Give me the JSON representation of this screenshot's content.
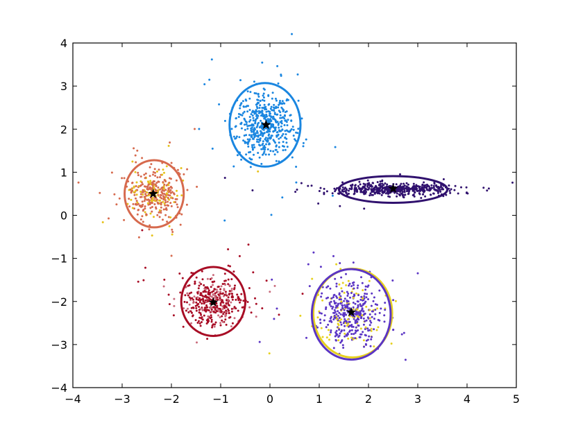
{
  "chart_data": {
    "type": "scatter",
    "title": "",
    "xlabel": "",
    "ylabel": "",
    "xlim": [
      -4,
      5
    ],
    "ylim": [
      -4,
      4
    ],
    "xticks": [
      -4,
      -3,
      -2,
      -1,
      0,
      1,
      2,
      3,
      4,
      5
    ],
    "yticks": [
      -4,
      -3,
      -2,
      -1,
      0,
      1,
      2,
      3,
      4
    ],
    "xtick_labels": [
      "−4",
      "−3",
      "−2",
      "−1",
      "0",
      "1",
      "2",
      "3",
      "4",
      "5"
    ],
    "ytick_labels": [
      "−4",
      "−3",
      "−2",
      "−1",
      "0",
      "1",
      "2",
      "3",
      "4"
    ],
    "grid": false,
    "legend": "none",
    "clusters": [
      {
        "id": "cluster-top",
        "color": "#1a86e0",
        "center": [
          -0.1,
          2.1
        ],
        "spread": [
          0.28,
          0.38
        ],
        "n_points": 520,
        "ellipse": {
          "cx": -0.1,
          "cy": 2.1,
          "rx": 0.72,
          "ry": 0.97
        },
        "marker": {
          "x": -0.08,
          "y": 2.1
        }
      },
      {
        "id": "cluster-left",
        "color": "#d66a4e",
        "secondary_color": "#e6c21c",
        "center": [
          -2.35,
          0.5
        ],
        "spread": [
          0.27,
          0.3
        ],
        "n_points": 380,
        "ellipse": {
          "cx": -2.35,
          "cy": 0.5,
          "rx": 0.6,
          "ry": 0.78
        },
        "marker": {
          "x": -2.37,
          "y": 0.5
        }
      },
      {
        "id": "cluster-right",
        "color": "#30116e",
        "center": [
          2.5,
          0.6
        ],
        "spread": [
          0.55,
          0.07
        ],
        "n_points": 480,
        "ellipse": {
          "cx": 2.5,
          "cy": 0.6,
          "rx": 1.1,
          "ry": 0.31
        },
        "marker": {
          "x": 2.5,
          "y": 0.62
        }
      },
      {
        "id": "cluster-bottom-left",
        "color": "#a80d25",
        "secondary_color": "#c96b7c",
        "center": [
          -1.15,
          -2.0
        ],
        "spread": [
          0.3,
          0.28
        ],
        "n_points": 420,
        "ellipse": {
          "cx": -1.15,
          "cy": -2.0,
          "rx": 0.65,
          "ry": 0.8
        },
        "marker": {
          "x": -1.15,
          "y": -2.02
        }
      },
      {
        "id": "cluster-bottom-right",
        "color": "#5b35c4",
        "secondary_color": "#e6d11f",
        "center": [
          1.65,
          -2.25
        ],
        "spread": [
          0.3,
          0.35
        ],
        "n_points": 460,
        "ellipse": {
          "cx": 1.65,
          "cy": -2.3,
          "rx": 0.8,
          "ry": 1.05
        },
        "secondary_ellipse": {
          "cx": 1.68,
          "cy": -2.27,
          "rx": 0.8,
          "ry": 1.03
        },
        "marker": {
          "x": 1.65,
          "y": -2.25
        }
      }
    ]
  }
}
